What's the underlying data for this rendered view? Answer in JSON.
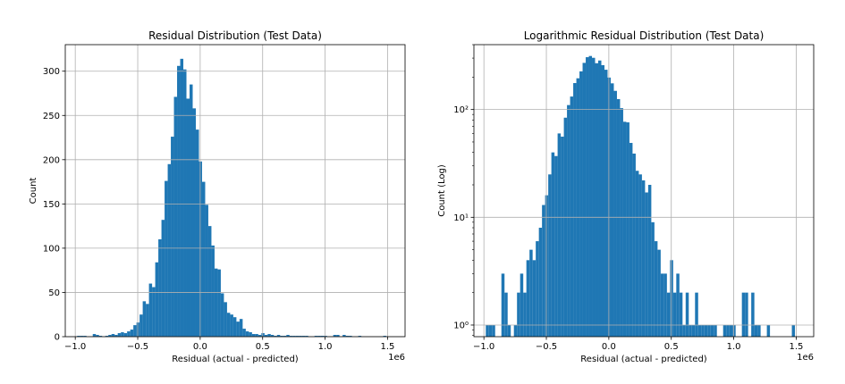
{
  "chart_data": [
    {
      "type": "bar",
      "title": "Residual Distribution (Test Data)",
      "xlabel": "Residual (actual - predicted)",
      "ylabel": "Count",
      "x_offset_label": "1e6",
      "x_scale": 1000000,
      "xlim": [
        -1.08,
        1.64
      ],
      "ylim": [
        0,
        330
      ],
      "xticks": [
        -1.0,
        -0.5,
        0.0,
        0.5,
        1.0,
        1.5
      ],
      "xtick_labels": [
        "−1.0",
        "−0.5",
        "0.0",
        "0.5",
        "1.0",
        "1.5"
      ],
      "yticks": [
        0,
        50,
        100,
        150,
        200,
        250,
        300
      ],
      "ytick_labels": [
        "0",
        "50",
        "100",
        "150",
        "200",
        "250",
        "300"
      ],
      "grid": true,
      "color": "#1f77b4",
      "bin_edges_start": -0.985,
      "bin_width": 0.025,
      "values": [
        1,
        1,
        1,
        0,
        0,
        3,
        2,
        1,
        0,
        1,
        2,
        3,
        2,
        4,
        5,
        4,
        6,
        8,
        13,
        16,
        25,
        40,
        37,
        60,
        56,
        84,
        110,
        132,
        176,
        195,
        226,
        271,
        306,
        314,
        302,
        269,
        285,
        258,
        234,
        198,
        175,
        149,
        125,
        103,
        77,
        76,
        49,
        39,
        27,
        25,
        22,
        17,
        20,
        9,
        6,
        5,
        3,
        3,
        2,
        4,
        2,
        3,
        2,
        1,
        2,
        1,
        1,
        2,
        1,
        1,
        1,
        1,
        1,
        1,
        0,
        0,
        1,
        1,
        1,
        1,
        0,
        0,
        2,
        2,
        0,
        2,
        1,
        1,
        0,
        0,
        1,
        0,
        0,
        0,
        0,
        0,
        0,
        0,
        1
      ]
    },
    {
      "type": "bar",
      "title": "Logarithmic Residual Distribution (Test Data)",
      "xlabel": "Residual (actual - predicted)",
      "ylabel": "Count (Log)",
      "x_offset_label": "1e6",
      "x_scale": 1000000,
      "xlim": [
        -1.08,
        1.64
      ],
      "yscale": "log",
      "ylim": [
        0.78,
        400
      ],
      "xticks": [
        -1.0,
        -0.5,
        0.0,
        0.5,
        1.0,
        1.5
      ],
      "xtick_labels": [
        "−1.0",
        "−0.5",
        "0.0",
        "0.5",
        "1.0",
        "1.5"
      ],
      "yticks": [
        1,
        10,
        100
      ],
      "ytick_labels": [
        "10⁰",
        "10¹",
        "10²"
      ],
      "grid": true,
      "color": "#1f77b4",
      "bin_edges_start": -0.985,
      "bin_width": 0.025,
      "values": [
        1,
        1,
        1,
        0,
        0,
        3,
        2,
        1,
        0,
        1,
        2,
        3,
        2,
        4,
        5,
        4,
        6,
        8,
        13,
        16,
        25,
        40,
        37,
        60,
        56,
        84,
        110,
        132,
        176,
        195,
        226,
        271,
        306,
        314,
        302,
        269,
        285,
        258,
        234,
        198,
        175,
        149,
        125,
        103,
        77,
        76,
        49,
        39,
        27,
        25,
        22,
        17,
        20,
        9,
        6,
        5,
        3,
        3,
        2,
        4,
        2,
        3,
        2,
        1,
        2,
        1,
        1,
        2,
        1,
        1,
        1,
        1,
        1,
        1,
        0,
        0,
        1,
        1,
        1,
        1,
        0,
        0,
        2,
        2,
        0,
        2,
        1,
        1,
        0,
        0,
        1,
        0,
        0,
        0,
        0,
        0,
        0,
        0,
        1
      ]
    }
  ]
}
